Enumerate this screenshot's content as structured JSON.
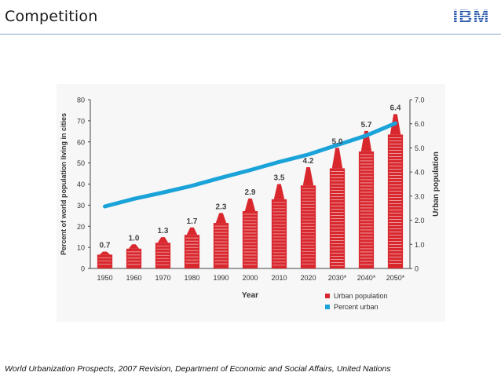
{
  "slide": {
    "title": "Competition",
    "logo_text": "IBM",
    "footnote": "World Urbanization Prospects, 2007 Revision, Department of Economic and Social Affairs, United Nations"
  },
  "colors": {
    "bars": "#d9272e",
    "line": "#1aa3d9",
    "logo": "#1f4fa8",
    "rule": "#8aa6c8"
  },
  "chart_data": {
    "type": "bar",
    "xlabel": "Year",
    "ylabel": "Percent of world population living in cities",
    "y2label": "Urban population",
    "categories": [
      "1950",
      "1960",
      "1970",
      "1980",
      "1990",
      "2000",
      "2010",
      "2020",
      "2030*",
      "2040*",
      "2050*"
    ],
    "ylim": [
      0,
      80
    ],
    "y_ticks": [
      "0",
      "10",
      "20",
      "30",
      "40",
      "50",
      "60",
      "70",
      "80"
    ],
    "y2lim": [
      0,
      7
    ],
    "y2_ticks": [
      "0",
      "1.0",
      "2.0",
      "3.0",
      "4.0",
      "5.0",
      "6.0",
      "7.0"
    ],
    "series": [
      {
        "name": "Urban population",
        "axis": "right",
        "style": "bar",
        "values": [
          0.7,
          1.0,
          1.3,
          1.7,
          2.3,
          2.9,
          3.5,
          4.2,
          5.0,
          5.7,
          6.4
        ],
        "labels": [
          "0.7",
          "1.0",
          "1.3",
          "1.7",
          "2.3",
          "2.9",
          "3.5",
          "4.2",
          "5.0",
          "5.7",
          "6.4"
        ]
      },
      {
        "name": "Percent urban",
        "axis": "left",
        "style": "line",
        "values": [
          29.4,
          33.0,
          36.0,
          39.2,
          43.0,
          46.6,
          50.5,
          54.0,
          58.5,
          63.0,
          68.8
        ]
      }
    ],
    "legend": [
      {
        "label": "Urban population",
        "swatch": "#d9272e"
      },
      {
        "label": "Percent urban",
        "swatch": "#1aa3d9"
      }
    ],
    "legend_position": "bottom-right",
    "grid": false
  }
}
